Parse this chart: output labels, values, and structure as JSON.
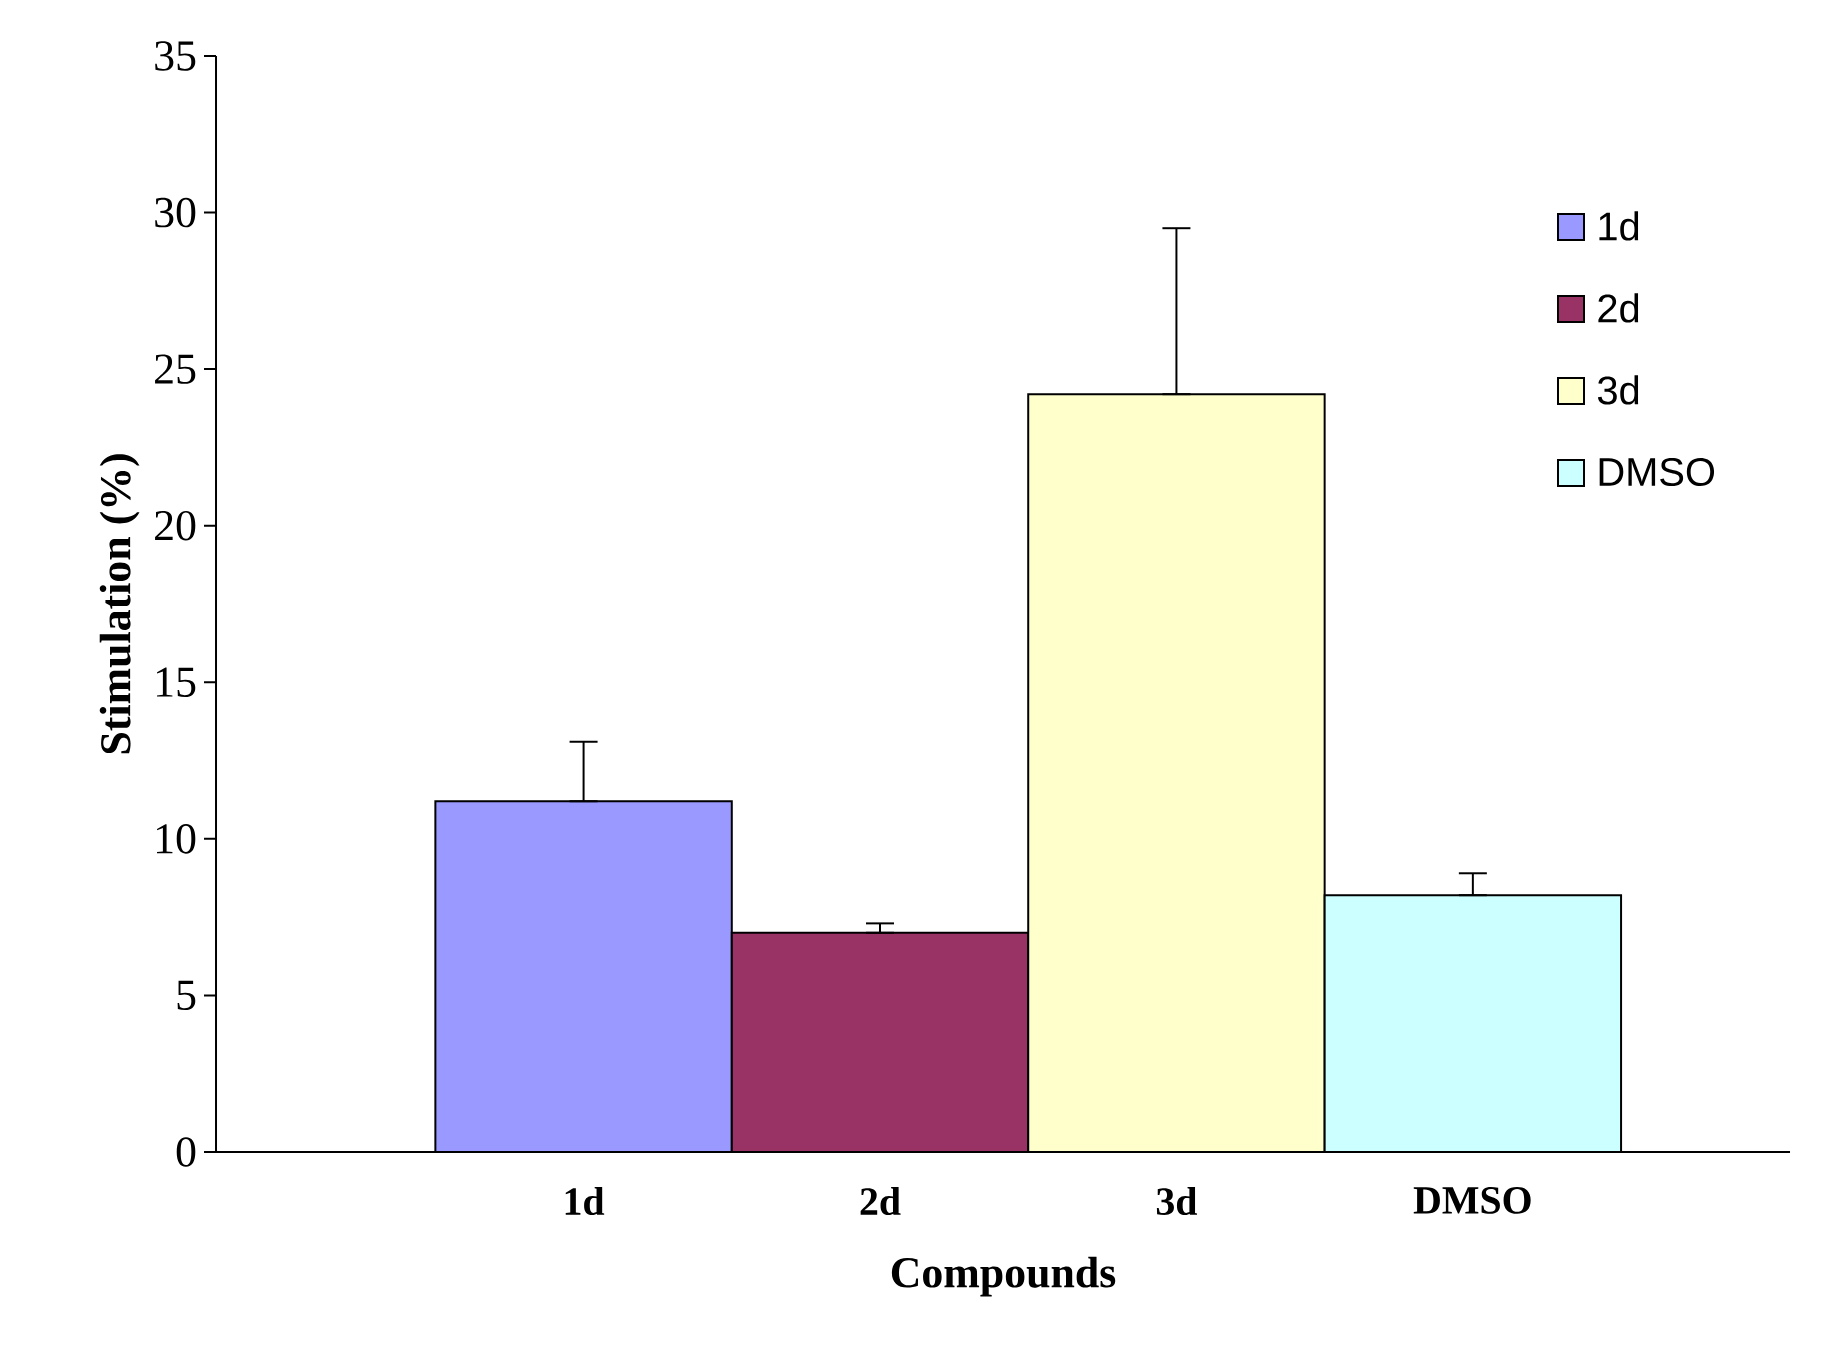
{
  "chart_data": {
    "type": "bar",
    "xlabel": "Compounds",
    "ylabel": "Stimulation (%)",
    "categories": [
      "1d",
      "2d",
      "3d",
      "DMSO"
    ],
    "series": [
      {
        "name": "1d",
        "color": "#9999ff",
        "values": [
          11.2,
          null,
          null,
          null
        ],
        "errors": [
          [
            11.2,
            13.1
          ],
          null,
          null,
          null
        ]
      },
      {
        "name": "2d",
        "color": "#993366",
        "values": [
          null,
          7.0,
          null,
          null
        ],
        "errors": [
          null,
          [
            7.0,
            7.3
          ],
          null,
          null
        ]
      },
      {
        "name": "3d",
        "color": "#ffffcc",
        "values": [
          null,
          null,
          24.2,
          null
        ],
        "errors": [
          null,
          null,
          [
            24.2,
            29.5
          ],
          null
        ]
      },
      {
        "name": "DMSO",
        "color": "#ccffff",
        "values": [
          null,
          null,
          null,
          8.2
        ],
        "errors": [
          null,
          null,
          null,
          [
            8.2,
            8.9
          ]
        ]
      }
    ],
    "ylim": [
      0,
      35
    ],
    "yticks": [
      0,
      5,
      10,
      15,
      20,
      25,
      30,
      35
    ],
    "legend": "top right",
    "grid": false
  }
}
